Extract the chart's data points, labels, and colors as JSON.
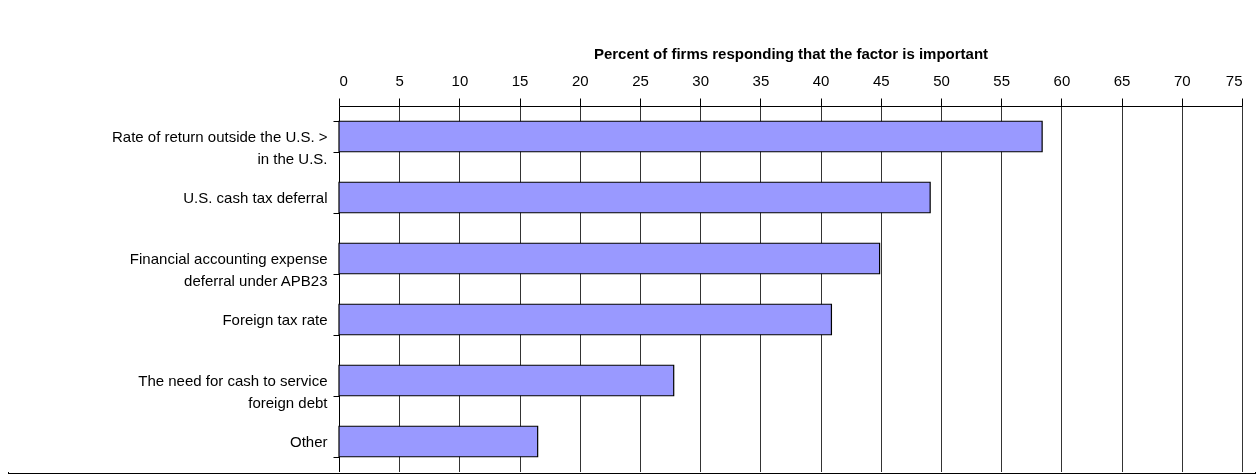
{
  "chart_data": {
    "type": "bar",
    "orientation": "horizontal",
    "xlabel": "Percent of firms responding that the factor is important",
    "categories": [
      "Rate of return outside the U.S. > in the U.S.",
      "U.S. cash tax deferral",
      "Financial accounting expense deferral under APB23",
      "Foreign tax rate",
      "The need for cash to service foreign debt",
      "Other"
    ],
    "values": [
      58.4,
      49.1,
      44.9,
      40.9,
      27.8,
      16.5
    ],
    "color": "#9999ff",
    "xlim": [
      0,
      75
    ],
    "xticks": [
      0,
      5,
      10,
      15,
      20,
      25,
      30,
      35,
      40,
      45,
      50,
      55,
      60,
      65,
      70,
      75
    ],
    "grid": "x"
  }
}
